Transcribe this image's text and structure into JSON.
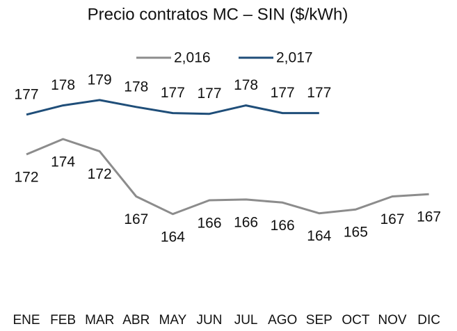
{
  "chart_data": {
    "type": "line",
    "title": "Precio contratos MC – SIN ($/kWh)",
    "categories": [
      "ENE",
      "FEB",
      "MAR",
      "ABR",
      "MAY",
      "JUN",
      "JUL",
      "AGO",
      "SEP",
      "OCT",
      "NOV",
      "DIC"
    ],
    "series": [
      {
        "name": "2,016",
        "color": "#8c8c8c",
        "values": [
          172.0,
          174.0,
          172.4,
          166.5,
          164.2,
          166.0,
          166.1,
          165.7,
          164.3,
          164.8,
          166.5,
          166.8
        ],
        "value_labels": [
          "172",
          "174",
          "172",
          "167",
          "164",
          "166",
          "166",
          "166",
          "164",
          "165",
          "167",
          "167"
        ]
      },
      {
        "name": "2,017",
        "color": "#1f4e79",
        "values": [
          177.2,
          178.4,
          179.1,
          178.2,
          177.4,
          177.3,
          178.4,
          177.4,
          177.4,
          null,
          null,
          null
        ],
        "value_labels": [
          "177",
          "178",
          "179",
          "178",
          "177",
          "177",
          "178",
          "177",
          "177",
          null,
          null,
          null
        ]
      }
    ],
    "ylim": [
      160,
      183
    ],
    "legend": "top"
  }
}
